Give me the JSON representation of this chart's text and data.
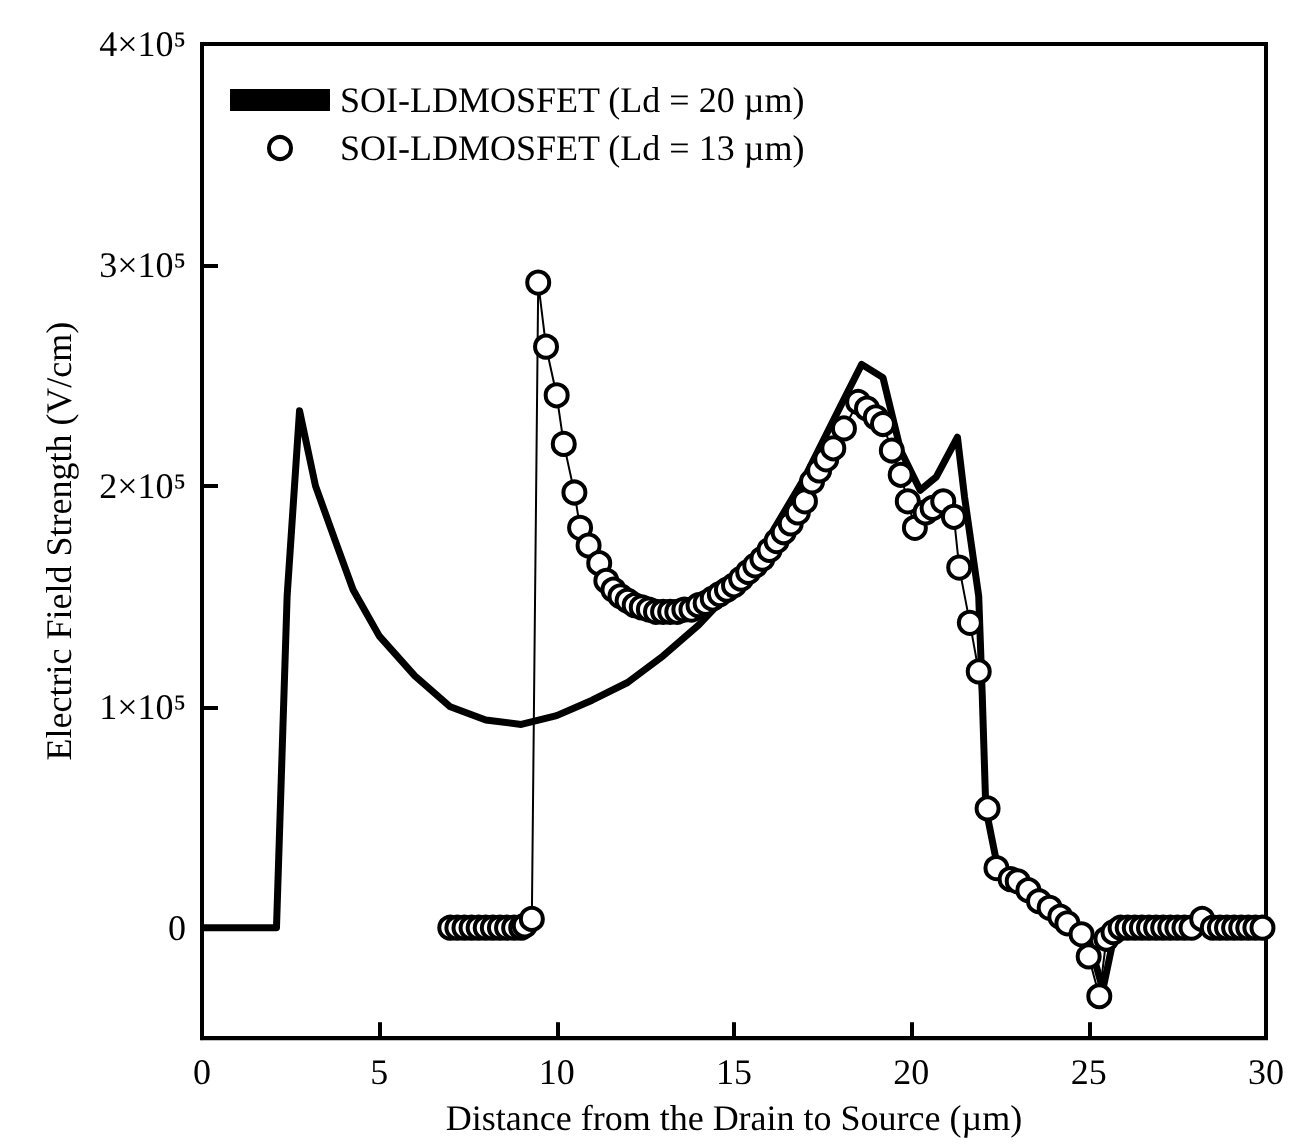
{
  "chart_data": {
    "type": "line",
    "xlabel": "Distance from the Drain to Source (µm)",
    "ylabel": "Electric Field Strength (V/cm)",
    "xlim": [
      0,
      30
    ],
    "xticks": [
      0,
      5,
      10,
      15,
      20,
      25,
      30
    ],
    "ylim": [
      -50000,
      400000
    ],
    "yticks": [
      0,
      {
        "value": 100000,
        "label": "1×10⁵"
      },
      {
        "value": 200000,
        "label": "2×10⁵"
      },
      {
        "value": 300000,
        "label": "3×10⁵"
      },
      {
        "value": 400000,
        "label": "4×10⁵"
      }
    ],
    "grid": false,
    "legend": "top left",
    "series": [
      {
        "name": "SOI-LDMOSFET (Ld = 20 µm)",
        "color": "#000000",
        "marker": "none",
        "x": [
          0,
          1,
          2.1,
          2.4,
          2.75,
          3.2,
          3.76,
          4.26,
          5,
          6,
          7,
          8,
          9,
          10,
          11,
          12,
          13,
          14,
          15,
          16,
          17,
          18,
          18.6,
          19.2,
          19.7,
          20.25,
          20.7,
          21.3,
          21.5,
          21.9,
          22.0,
          22.1,
          22.4,
          23,
          24,
          25,
          25.4,
          25.7,
          26,
          30
        ],
        "values": [
          0,
          0,
          0,
          150000,
          234000,
          200000,
          175000,
          153000,
          132000,
          114000,
          100000,
          94000,
          92000,
          96000,
          103000,
          111000,
          123000,
          137000,
          154000,
          177000,
          204000,
          236000,
          255000,
          249000,
          216000,
          198000,
          204000,
          222000,
          195000,
          150000,
          105000,
          54000,
          30000,
          22000,
          10000,
          -5000,
          -28000,
          -5000,
          0,
          0
        ]
      },
      {
        "name": "SOI-LDMOSFET (Ld = 13 µm)",
        "color": "#000000",
        "marker": "circle",
        "x": [
          7.0,
          7.2,
          7.4,
          7.6,
          7.8,
          8.0,
          8.2,
          8.4,
          8.6,
          8.8,
          9.0,
          9.1,
          9.3,
          9.48,
          9.7,
          10.0,
          10.2,
          10.5,
          10.66,
          10.9,
          11.2,
          11.4,
          11.6,
          11.8,
          12.0,
          12.2,
          12.4,
          12.6,
          12.8,
          13.0,
          13.2,
          13.4,
          13.6,
          13.8,
          14.0,
          14.2,
          14.4,
          14.6,
          14.8,
          15.0,
          15.2,
          15.4,
          15.6,
          15.8,
          16.0,
          16.2,
          16.4,
          16.6,
          16.8,
          17.0,
          17.2,
          17.4,
          17.6,
          17.8,
          18.1,
          18.5,
          18.75,
          19.0,
          19.2,
          19.45,
          19.7,
          19.9,
          20.1,
          20.4,
          20.6,
          20.9,
          21.2,
          21.35,
          21.65,
          21.9,
          22.15,
          22.4,
          22.8,
          23.0,
          23.3,
          23.6,
          23.9,
          24.2,
          24.4,
          24.8,
          25.0,
          25.3,
          25.5,
          25.7,
          25.9,
          26.1,
          26.3,
          26.5,
          26.7,
          26.9,
          27.1,
          27.3,
          27.5,
          27.7,
          27.9,
          28.2,
          28.5,
          28.7,
          28.9,
          29.1,
          29.3,
          29.5,
          29.7,
          29.9
        ],
        "values": [
          0,
          0,
          0,
          0,
          0,
          0,
          0,
          0,
          0,
          0,
          0,
          1000,
          4000,
          292000,
          263000,
          241000,
          219000,
          197000,
          181000,
          173000,
          165000,
          157000,
          153000,
          150000,
          148000,
          146000,
          145000,
          144000,
          143000,
          143000,
          143000,
          143000,
          144000,
          144000,
          146000,
          147000,
          149000,
          151000,
          153000,
          155000,
          158000,
          161000,
          164000,
          167000,
          171000,
          175000,
          179000,
          183000,
          188000,
          193000,
          202000,
          207000,
          212000,
          217000,
          226000,
          238000,
          235000,
          231000,
          228000,
          216000,
          205000,
          193000,
          181000,
          188000,
          190000,
          193000,
          186000,
          163000,
          138000,
          116000,
          54000,
          27000,
          22000,
          21000,
          17000,
          12000,
          9000,
          5000,
          2000,
          -3000,
          -13000,
          -31000,
          -5000,
          -2000,
          0,
          0,
          0,
          0,
          0,
          0,
          0,
          0,
          0,
          0,
          0,
          4000,
          0,
          0,
          0,
          0,
          0,
          0,
          0,
          0
        ]
      }
    ]
  }
}
